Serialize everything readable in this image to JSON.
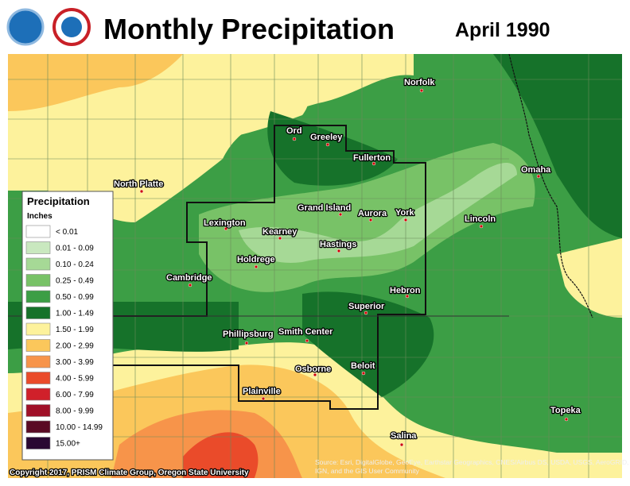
{
  "header": {
    "title": "Monthly Precipitation",
    "date": "April 1990"
  },
  "legend": {
    "title": "Precipitation",
    "unit": "Inches",
    "items": [
      {
        "label": "< 0.01",
        "color": "#ffffff"
      },
      {
        "label": "0.01 - 0.09",
        "color": "#c9e8bf"
      },
      {
        "label": "0.10 - 0.24",
        "color": "#a6d996"
      },
      {
        "label": "0.25 - 0.49",
        "color": "#78c267"
      },
      {
        "label": "0.50 - 0.99",
        "color": "#3c9e45"
      },
      {
        "label": "1.00 - 1.49",
        "color": "#16722a"
      },
      {
        "label": "1.50 - 1.99",
        "color": "#fdf29c"
      },
      {
        "label": "2.00 - 2.99",
        "color": "#fbc75b"
      },
      {
        "label": "3.00 - 3.99",
        "color": "#f7944a"
      },
      {
        "label": "4.00 - 5.99",
        "color": "#ea4b2a"
      },
      {
        "label": "6.00 - 7.99",
        "color": "#d0202a"
      },
      {
        "label": "8.00 - 9.99",
        "color": "#a01028"
      },
      {
        "label": "10.00 - 14.99",
        "color": "#5a0a24"
      },
      {
        "label": "15.00+",
        "color": "#2a0832"
      }
    ]
  },
  "cities": [
    "Norfolk",
    "Ord",
    "Greeley",
    "Fullerton",
    "North Platte",
    "Omaha",
    "Grand Island",
    "Aurora",
    "York",
    "Lincoln",
    "Lexington",
    "Kearney",
    "Hastings",
    "Holdrege",
    "Cambridge",
    "Hebron",
    "Superior",
    "Phillipsburg",
    "Smith Center",
    "Osborne",
    "Beloit",
    "Plainville",
    "Topeka",
    "Salina"
  ],
  "footer": {
    "copyright": "Copyright 2017, PRISM Climate Group, Oregon State University",
    "source": [
      "Source: Esri, DigitalGlobe, GeoEye, Earthstar Geographics, CNES/Airbus DS, USDA, USGS, AeroGRID,",
      "IGN, and the GIS User Community"
    ]
  }
}
